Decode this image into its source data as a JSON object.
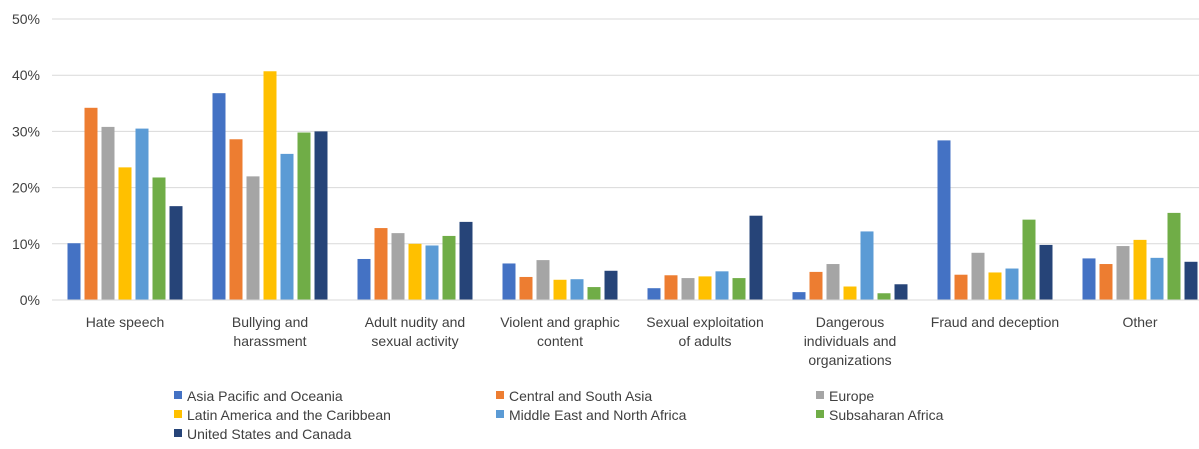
{
  "chart_data": {
    "type": "bar",
    "title": "",
    "xlabel": "",
    "ylabel": "",
    "ylim": [
      0,
      50
    ],
    "y_ticks": [
      "0%",
      "10%",
      "20%",
      "30%",
      "40%",
      "50%"
    ],
    "y_tick_values": [
      0,
      10,
      20,
      30,
      40,
      50
    ],
    "grid": "horizontal",
    "legend_position": "bottom",
    "categories": [
      [
        "Hate speech"
      ],
      [
        "Bullying and",
        "harassment"
      ],
      [
        "Adult nudity and",
        "sexual activity"
      ],
      [
        "Violent and graphic",
        "content"
      ],
      [
        "Sexual exploitation",
        "of adults"
      ],
      [
        "Dangerous",
        "individuals and",
        "organizations"
      ],
      [
        "Fraud and deception"
      ],
      [
        "Other"
      ]
    ],
    "series": [
      {
        "name": "Asia Pacific and Oceania",
        "color": "#4472C4",
        "values": [
          10.1,
          36.8,
          7.3,
          6.5,
          2.1,
          1.4,
          28.4,
          7.4
        ]
      },
      {
        "name": "Central and South Asia",
        "color": "#ED7D31",
        "values": [
          34.2,
          28.6,
          12.8,
          4.1,
          4.4,
          5.0,
          4.5,
          6.4
        ]
      },
      {
        "name": "Europe",
        "color": "#A5A5A5",
        "values": [
          30.8,
          22.0,
          11.9,
          7.1,
          3.9,
          6.4,
          8.4,
          9.6
        ]
      },
      {
        "name": "Latin America and the Caribbean",
        "color": "#FFC000",
        "values": [
          23.6,
          40.7,
          10.0,
          3.6,
          4.2,
          2.4,
          4.9,
          10.7
        ]
      },
      {
        "name": "Middle East and North Africa",
        "color": "#5B9BD5",
        "values": [
          30.5,
          26.0,
          9.7,
          3.7,
          5.1,
          12.2,
          5.6,
          7.5
        ]
      },
      {
        "name": "Subsaharan Africa",
        "color": "#70AD47",
        "values": [
          21.8,
          29.8,
          11.4,
          2.3,
          3.9,
          1.2,
          14.3,
          15.5
        ]
      },
      {
        "name": "United States and Canada",
        "color": "#264478",
        "values": [
          16.7,
          30.0,
          13.9,
          5.2,
          15.0,
          2.8,
          9.8,
          6.8
        ]
      }
    ]
  }
}
